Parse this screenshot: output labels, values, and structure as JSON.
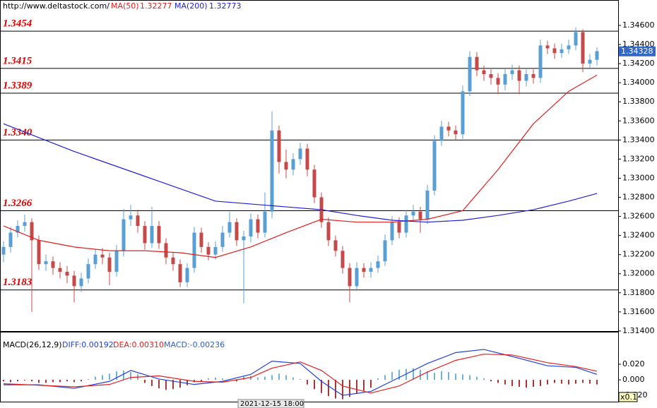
{
  "chart_data": [
    {
      "type": "candlestick",
      "source": "http://www.deltastock.com/",
      "up_color": "#5a9fd4",
      "down_color": "#c44a4a",
      "open": [
        1.322,
        1.3228,
        1.3243,
        1.325,
        1.3254,
        1.3235,
        1.321,
        1.3213,
        1.3206,
        1.3202,
        1.3198,
        1.3187,
        1.3195,
        1.321,
        1.322,
        1.3217,
        1.3202,
        1.3224,
        1.3257,
        1.3261,
        1.325,
        1.3232,
        1.325,
        1.3232,
        1.3217,
        1.321,
        1.3191,
        1.3206,
        1.3243,
        1.3228,
        1.322,
        1.3228,
        1.3243,
        1.3254,
        1.3235,
        1.3239,
        1.3257,
        1.3243,
        1.3265,
        1.335,
        1.3317,
        1.3309,
        1.332,
        1.3331,
        1.3309,
        1.328,
        1.3254,
        1.3235,
        1.3224,
        1.3206,
        1.3187,
        1.3206,
        1.3202,
        1.3206,
        1.3213,
        1.3235,
        1.3254,
        1.3243,
        1.3261,
        1.3265,
        1.3257,
        1.3287,
        1.3339,
        1.3354,
        1.335,
        1.3346,
        1.3391,
        1.3427,
        1.3413,
        1.3409,
        1.3405,
        1.3398,
        1.3409,
        1.3413,
        1.3402,
        1.3409,
        1.3405,
        1.3439,
        1.3436,
        1.3431,
        1.3435,
        1.3439,
        1.3453,
        1.342,
        1.3424
      ],
      "high": [
        1.3234,
        1.3249,
        1.3256,
        1.3262,
        1.3258,
        1.324,
        1.322,
        1.3218,
        1.3212,
        1.3208,
        1.3203,
        1.3201,
        1.3216,
        1.3226,
        1.3227,
        1.3222,
        1.323,
        1.3268,
        1.3272,
        1.3267,
        1.3255,
        1.327,
        1.3255,
        1.3237,
        1.3222,
        1.3215,
        1.3211,
        1.3249,
        1.3248,
        1.3233,
        1.3234,
        1.325,
        1.3265,
        1.3258,
        1.3245,
        1.3263,
        1.3262,
        1.3285,
        1.337,
        1.3355,
        1.333,
        1.3326,
        1.3337,
        1.3336,
        1.3314,
        1.3285,
        1.3259,
        1.324,
        1.3229,
        1.3211,
        1.3212,
        1.3211,
        1.3212,
        1.3219,
        1.3241,
        1.326,
        1.3259,
        1.3267,
        1.3272,
        1.327,
        1.3293,
        1.3345,
        1.336,
        1.3359,
        1.3355,
        1.3397,
        1.3433,
        1.3432,
        1.3418,
        1.3414,
        1.341,
        1.3415,
        1.3419,
        1.3418,
        1.3415,
        1.3414,
        1.3445,
        1.3444,
        1.3441,
        1.3441,
        1.3445,
        1.3458,
        1.3456,
        1.343,
        1.3437
      ],
      "low": [
        1.3212,
        1.3222,
        1.3238,
        1.3244,
        1.316,
        1.3204,
        1.3203,
        1.3199,
        1.3195,
        1.319,
        1.317,
        1.3181,
        1.319,
        1.3205,
        1.321,
        1.3188,
        1.3197,
        1.3218,
        1.325,
        1.3243,
        1.3225,
        1.3227,
        1.3226,
        1.321,
        1.3203,
        1.3186,
        1.3186,
        1.3201,
        1.3222,
        1.3214,
        1.3215,
        1.3223,
        1.3238,
        1.3229,
        1.3169,
        1.3233,
        1.3237,
        1.3238,
        1.3258,
        1.3305,
        1.33,
        1.3303,
        1.3314,
        1.3302,
        1.3274,
        1.3248,
        1.3229,
        1.3218,
        1.32,
        1.317,
        1.3182,
        1.3196,
        1.3196,
        1.3201,
        1.3208,
        1.323,
        1.3237,
        1.3238,
        1.3255,
        1.3243,
        1.3252,
        1.3282,
        1.3334,
        1.3344,
        1.334,
        1.3341,
        1.3386,
        1.3407,
        1.3402,
        1.3398,
        1.3388,
        1.3392,
        1.3403,
        1.3388,
        1.3396,
        1.3399,
        1.34,
        1.343,
        1.3425,
        1.3426,
        1.343,
        1.3434,
        1.3411,
        1.3415,
        1.3418
      ],
      "close": [
        1.3228,
        1.3243,
        1.325,
        1.3254,
        1.3235,
        1.321,
        1.3213,
        1.3206,
        1.3202,
        1.3198,
        1.3187,
        1.3195,
        1.321,
        1.322,
        1.3217,
        1.3202,
        1.3224,
        1.3257,
        1.3261,
        1.325,
        1.3232,
        1.325,
        1.3232,
        1.3217,
        1.321,
        1.3191,
        1.3206,
        1.3243,
        1.3228,
        1.322,
        1.3228,
        1.3243,
        1.3254,
        1.3235,
        1.3239,
        1.3257,
        1.3243,
        1.3265,
        1.335,
        1.3317,
        1.3309,
        1.332,
        1.3331,
        1.3309,
        1.328,
        1.3254,
        1.3235,
        1.3224,
        1.3206,
        1.3187,
        1.3206,
        1.3202,
        1.3206,
        1.3213,
        1.3235,
        1.3254,
        1.3243,
        1.3261,
        1.3265,
        1.3257,
        1.3287,
        1.3339,
        1.3354,
        1.335,
        1.3346,
        1.3391,
        1.3427,
        1.3413,
        1.3409,
        1.3405,
        1.3398,
        1.3409,
        1.3413,
        1.3402,
        1.3409,
        1.3405,
        1.3439,
        1.3436,
        1.3431,
        1.3435,
        1.3439,
        1.3453,
        1.342,
        1.3424,
        1.3433
      ],
      "overlays": [
        {
          "name": "MA(50)",
          "last_value": 1.32277,
          "color": "#e02020",
          "x": [
            0,
            5,
            10,
            15,
            20,
            25,
            30,
            35,
            40,
            45,
            50,
            55,
            60,
            65,
            70,
            75,
            80,
            84
          ],
          "values": [
            1.325,
            1.3235,
            1.3228,
            1.3224,
            1.3224,
            1.3222,
            1.3217,
            1.3228,
            1.3243,
            1.3257,
            1.3254,
            1.3254,
            1.3257,
            1.3266,
            1.3309,
            1.3357,
            1.3391,
            1.3408
          ]
        },
        {
          "name": "MA(200)",
          "last_value": 1.32773,
          "color": "#2020d8",
          "x": [
            0,
            10,
            20,
            30,
            40,
            45,
            50,
            55,
            60,
            65,
            70,
            75,
            80,
            84
          ],
          "values": [
            1.3357,
            1.3328,
            1.3302,
            1.3276,
            1.327,
            1.3267,
            1.3261,
            1.3256,
            1.3254,
            1.3256,
            1.3261,
            1.3267,
            1.3276,
            1.3284
          ]
        }
      ],
      "levels": [
        1.3454,
        1.3415,
        1.3389,
        {
          "value": 1.334,
          "label": "1.3340"
        },
        1.3266,
        1.3183
      ],
      "level_label_color": "#e00000",
      "last_price": 1.34328,
      "ylim": [
        1.31392,
        1.34866
      ],
      "yticks": [
        {
          "value": 1.346,
          "label": "1.34600"
        },
        {
          "value": 1.344,
          "label": "1.34400"
        },
        {
          "value": 1.342,
          "label": "1.34200"
        },
        {
          "value": 1.34,
          "label": "1.34000"
        },
        {
          "value": 1.338,
          "label": "1.33800"
        },
        {
          "value": 1.336,
          "label": "1.33600"
        },
        {
          "value": 1.334,
          "label": "1.33400"
        },
        {
          "value": 1.332,
          "label": "1.33200"
        },
        {
          "value": 1.33,
          "label": "1.33000"
        },
        {
          "value": 1.328,
          "label": "1.32800"
        },
        {
          "value": 1.326,
          "label": "1.32600"
        },
        {
          "value": 1.324,
          "label": "1.32400"
        },
        {
          "value": 1.322,
          "label": "1.32200"
        },
        {
          "value": 1.32,
          "label": "1.32000"
        },
        {
          "value": 1.318,
          "label": "1.31800"
        },
        {
          "value": 1.316,
          "label": "1.31600"
        },
        {
          "value": 1.314,
          "label": "1.31400"
        }
      ]
    },
    {
      "type": "macd",
      "title": "MACD(26,12,9)",
      "histogram": {
        "name": "MACD:-0.00236",
        "color": "#2b5fc8",
        "up_color": "#6fb3d6",
        "down_color": "#a83838",
        "values": [
          -0.002,
          -0.003,
          -0.002,
          -0.001,
          -0.002,
          -0.004,
          -0.004,
          -0.003,
          -0.003,
          -0.002,
          -0.003,
          -0.002,
          0.001,
          0.004,
          0.006,
          0.008,
          0.011,
          0.012,
          0.01,
          0.007,
          -0.004,
          -0.008,
          -0.011,
          -0.013,
          -0.012,
          -0.01,
          -0.007,
          -0.003,
          -0.002,
          0.002,
          0.003,
          0.002,
          0.001,
          -0.002,
          0.004,
          0.005,
          0.003,
          0.004,
          0.006,
          0.008,
          0.006,
          0.003,
          0.001,
          -0.006,
          -0.012,
          -0.017,
          -0.021,
          -0.024,
          -0.025,
          -0.022,
          -0.018,
          -0.014,
          -0.01,
          0.002,
          0.006,
          0.01,
          0.013,
          0.014,
          0.015,
          0.013,
          0.011,
          0.009,
          0.011,
          0.01,
          0.008,
          0.007,
          0.006,
          0.004,
          0.002,
          -0.002,
          -0.004,
          -0.006,
          -0.008,
          -0.009,
          -0.01,
          -0.009,
          -0.008,
          -0.006,
          -0.004,
          -0.005,
          -0.006,
          -0.005,
          -0.004,
          -0.005,
          -0.006
        ]
      },
      "series": [
        {
          "name": "DIFF:0.00192",
          "color": "#2040e0",
          "x": [
            0,
            5,
            10,
            15,
            18,
            22,
            27,
            31,
            35,
            38,
            42,
            45,
            48,
            52,
            56,
            60,
            64,
            68,
            72,
            77,
            81,
            84
          ],
          "values": [
            -0.0064,
            -0.0064,
            -0.011,
            -0.002,
            0.012,
            0.001,
            -0.006,
            -0.002,
            0.007,
            0.024,
            0.021,
            -0.002,
            -0.02,
            -0.015,
            0.003,
            0.021,
            0.035,
            0.039,
            0.03,
            0.018,
            0.016,
            0.007
          ]
        },
        {
          "name": "DEA:0.00310",
          "color": "#e02020",
          "x": [
            0,
            5,
            10,
            15,
            18,
            22,
            27,
            31,
            35,
            38,
            42,
            45,
            48,
            52,
            56,
            60,
            64,
            68,
            72,
            77,
            81,
            84
          ],
          "values": [
            -0.005,
            -0.007,
            -0.009,
            -0.006,
            0.003,
            0.005,
            -0.002,
            -0.003,
            0.003,
            0.015,
            0.023,
            0.012,
            -0.008,
            -0.017,
            -0.008,
            0.01,
            0.025,
            0.033,
            0.032,
            0.022,
            0.017,
            0.011
          ]
        }
      ],
      "ylim": [
        -0.029,
        0.0545
      ],
      "yticks": [
        {
          "value": 0.02,
          "label": "0.020"
        },
        {
          "value": 0,
          "label": "0.000"
        },
        {
          "value": -0.02,
          "label": "-0.020"
        }
      ],
      "scale_label": "x0.1",
      "cursor_label": "2021-12-15 18:00"
    }
  ]
}
